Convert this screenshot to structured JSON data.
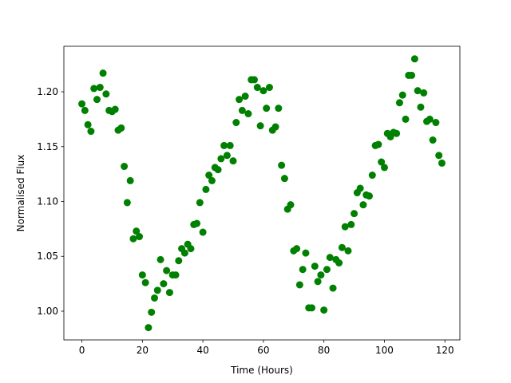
{
  "chart_data": {
    "type": "scatter",
    "x_label": "Time (Hours)",
    "y_label": "Normalised Flux",
    "color": "#008000",
    "x": [
      0,
      1,
      2,
      3,
      4,
      5,
      6,
      7,
      8,
      9,
      10,
      11,
      12,
      13,
      14,
      15,
      16,
      17,
      18,
      19,
      20,
      21,
      22,
      23,
      24,
      25,
      26,
      27,
      28,
      29,
      30,
      31,
      32,
      33,
      34,
      35,
      36,
      37,
      38,
      39,
      40,
      41,
      42,
      43,
      44,
      45,
      46,
      47,
      48,
      49,
      50,
      51,
      52,
      53,
      54,
      55,
      56,
      57,
      58,
      59,
      60,
      61,
      62,
      63,
      64,
      65,
      66,
      67,
      68,
      69,
      70,
      71,
      72,
      73,
      74,
      75,
      76,
      77,
      78,
      79,
      80,
      81,
      82,
      83,
      84,
      85,
      86,
      87,
      88,
      89,
      90,
      91,
      92,
      93,
      94,
      95,
      96,
      97,
      98,
      99,
      100,
      101,
      102,
      103,
      104,
      105,
      106,
      107,
      108,
      109,
      110,
      111,
      112,
      113,
      114,
      115,
      116,
      117,
      118,
      119
    ],
    "values": [
      1.189,
      1.183,
      1.17,
      1.164,
      1.203,
      1.193,
      1.204,
      1.217,
      1.198,
      1.183,
      1.182,
      1.184,
      1.165,
      1.167,
      1.132,
      1.099,
      1.119,
      1.066,
      1.073,
      1.068,
      1.033,
      1.026,
      0.985,
      0.999,
      1.012,
      1.019,
      1.047,
      1.025,
      1.037,
      1.017,
      1.033,
      1.033,
      1.046,
      1.057,
      1.053,
      1.061,
      1.057,
      1.079,
      1.08,
      1.099,
      1.072,
      1.111,
      1.124,
      1.119,
      1.131,
      1.129,
      1.139,
      1.151,
      1.142,
      1.151,
      1.137,
      1.172,
      1.193,
      1.183,
      1.196,
      1.18,
      1.211,
      1.211,
      1.204,
      1.169,
      1.201,
      1.185,
      1.204,
      1.165,
      1.168,
      1.185,
      1.133,
      1.121,
      1.093,
      1.097,
      1.055,
      1.057,
      1.024,
      1.038,
      1.053,
      1.003,
      1.003,
      1.041,
      1.027,
      1.033,
      1.001,
      1.038,
      1.049,
      1.021,
      1.047,
      1.044,
      1.058,
      1.077,
      1.055,
      1.079,
      1.089,
      1.108,
      1.112,
      1.097,
      1.106,
      1.105,
      1.124,
      1.151,
      1.152,
      1.136,
      1.131,
      1.162,
      1.159,
      1.163,
      1.162,
      1.19,
      1.197,
      1.175,
      1.215,
      1.215,
      1.23,
      1.201,
      1.186,
      1.199,
      1.173,
      1.175,
      1.156,
      1.172,
      1.142,
      1.135
    ],
    "xlim": [
      -5.95,
      124.95
    ],
    "ylim": [
      0.9738,
      1.2415
    ],
    "xticks": [
      0,
      20,
      40,
      60,
      80,
      100,
      120
    ],
    "yticks": [
      {
        "value": 1.0,
        "label": "1.00"
      },
      1.05,
      {
        "value": 1.1,
        "label": "1.10"
      },
      1.15,
      {
        "value": 1.2,
        "label": "1.20"
      }
    ],
    "grid": false
  }
}
